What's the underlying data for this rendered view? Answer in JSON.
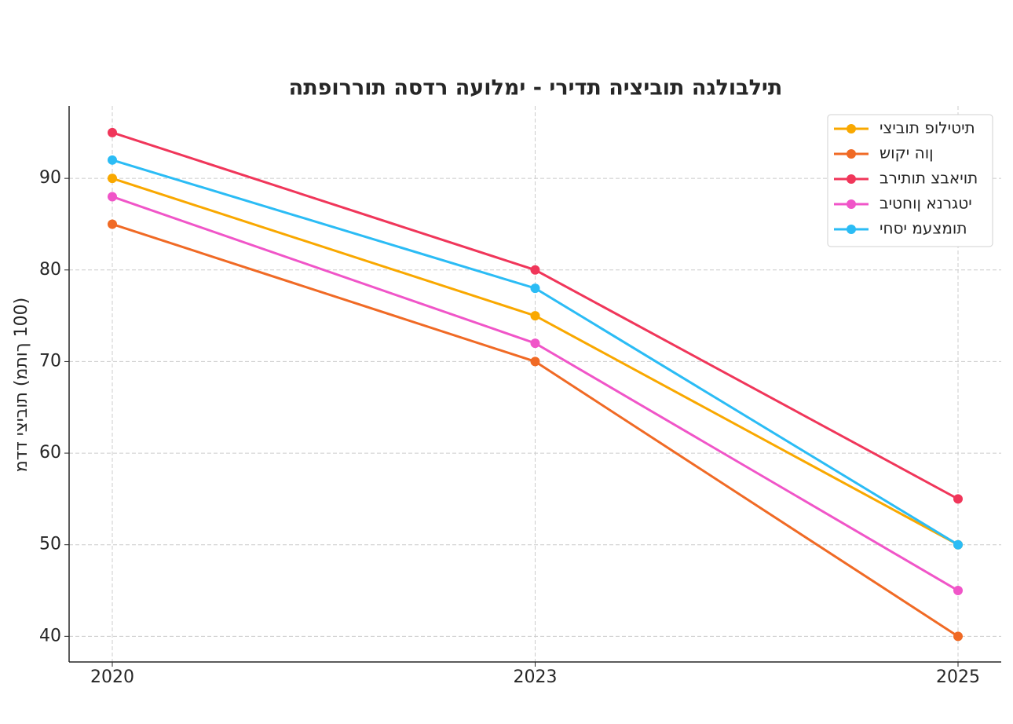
{
  "chart_data": {
    "type": "line",
    "title": "התפוררות הסדר העולמי - ירידת היציבות הגלובלית",
    "y_label": "מדד יציבות (מתוך 100)",
    "categories": [
      "2020",
      "2023",
      "2025"
    ],
    "series": [
      {
        "name": "יציבות פוליטית",
        "color": "#f9a800",
        "values": [
          90,
          75,
          50
        ]
      },
      {
        "name": "שוקי הון",
        "color": "#f06a25",
        "values": [
          85,
          70,
          40
        ]
      },
      {
        "name": "בריתות צבאיות",
        "color": "#f0365a",
        "values": [
          95,
          80,
          55
        ]
      },
      {
        "name": "ביטחון אנרגטי",
        "color": "#f055c8",
        "values": [
          88,
          72,
          45
        ]
      },
      {
        "name": "יחסי מעצמות",
        "color": "#2bbcf5",
        "values": [
          92,
          78,
          50
        ]
      }
    ],
    "ylim": [
      37.2,
      97.9
    ],
    "yticks": [
      40,
      50,
      60,
      70,
      80,
      90
    ],
    "grid": true,
    "legend": "upper-right"
  }
}
